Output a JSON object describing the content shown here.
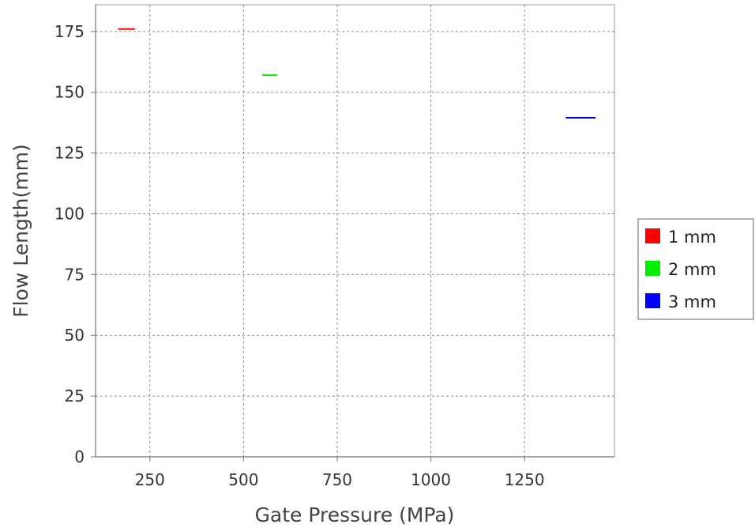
{
  "chart_data": {
    "type": "line",
    "xlabel": "Gate Pressure (MPa)",
    "ylabel": "Flow Length(mm)",
    "xlim": [
      105,
      1490
    ],
    "ylim": [
      0,
      186
    ],
    "x_ticks": [
      250,
      500,
      750,
      1000,
      1250
    ],
    "x_tick_labels": [
      "250",
      "500",
      "750",
      "1000",
      "1250"
    ],
    "y_ticks": [
      0,
      25,
      50,
      75,
      100,
      125,
      150,
      175
    ],
    "y_tick_labels": [
      "0",
      "25",
      "50",
      "75",
      "100",
      "125",
      "150",
      "175"
    ],
    "grid": true,
    "legend_position": "right",
    "series": [
      {
        "name": "1 mm",
        "color": "#ff0000",
        "x": [
          165,
          210
        ],
        "y": [
          176,
          176
        ]
      },
      {
        "name": "2 mm",
        "color": "#00ee00",
        "x": [
          550,
          590
        ],
        "y": [
          157,
          157
        ]
      },
      {
        "name": "3 mm",
        "color": "#0000ff",
        "x": [
          1360,
          1440
        ],
        "y": [
          139.5,
          139.5
        ]
      }
    ]
  }
}
